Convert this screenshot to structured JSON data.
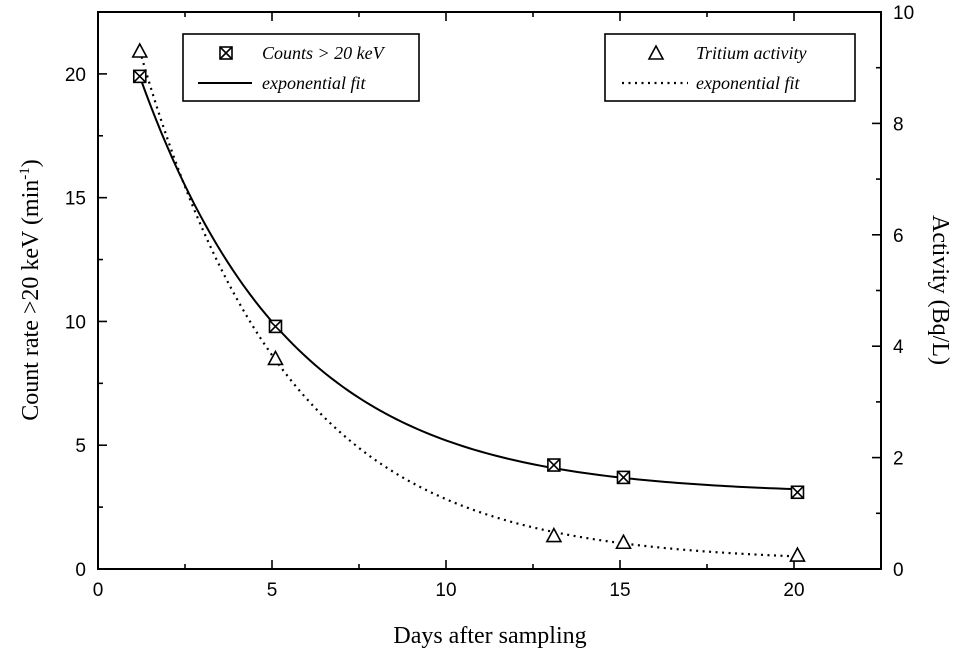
{
  "chart_data": {
    "type": "scatter",
    "title": "",
    "xlabel": "Days after sampling",
    "ylabel_left": "Count rate >20 keV (min",
    "ylabel_left_sup": "-1",
    "ylabel_left_close": ")",
    "ylabel_right": "Activity (Bq/L)",
    "xlim": [
      0,
      22.5
    ],
    "ylim_left": [
      0,
      22.5
    ],
    "ylim_right": [
      0,
      10
    ],
    "x_ticks": [
      0,
      5,
      10,
      15,
      20
    ],
    "y_left_ticks": [
      0,
      5,
      10,
      15,
      20
    ],
    "y_right_ticks": [
      0,
      2,
      4,
      6,
      8,
      10
    ],
    "series": [
      {
        "name": "Counts > 20 keV",
        "axis": "left",
        "marker": "square-x",
        "x": [
          1.2,
          5.1,
          13.1,
          15.1,
          20.1
        ],
        "y": [
          19.9,
          9.8,
          4.2,
          3.7,
          3.1
        ],
        "fit": {
          "label": "exponential fit",
          "style": "solid",
          "x0": 1.2,
          "x1": 20.1
        }
      },
      {
        "name": "Tritium activity",
        "axis": "right",
        "marker": "triangle",
        "x": [
          1.2,
          5.1,
          13.1,
          15.1,
          20.1
        ],
        "y": [
          9.3,
          3.78,
          0.6,
          0.48,
          0.25
        ],
        "fit": {
          "label": "exponential fit",
          "style": "dotted",
          "x0": 1.2,
          "x1": 20.1
        }
      }
    ],
    "legend": [
      {
        "placement": "top-left",
        "entries": [
          "Counts > 20 keV",
          "exponential fit"
        ]
      },
      {
        "placement": "top-right",
        "entries": [
          "Tritium activity",
          "exponential fit"
        ]
      }
    ],
    "grid": false
  }
}
